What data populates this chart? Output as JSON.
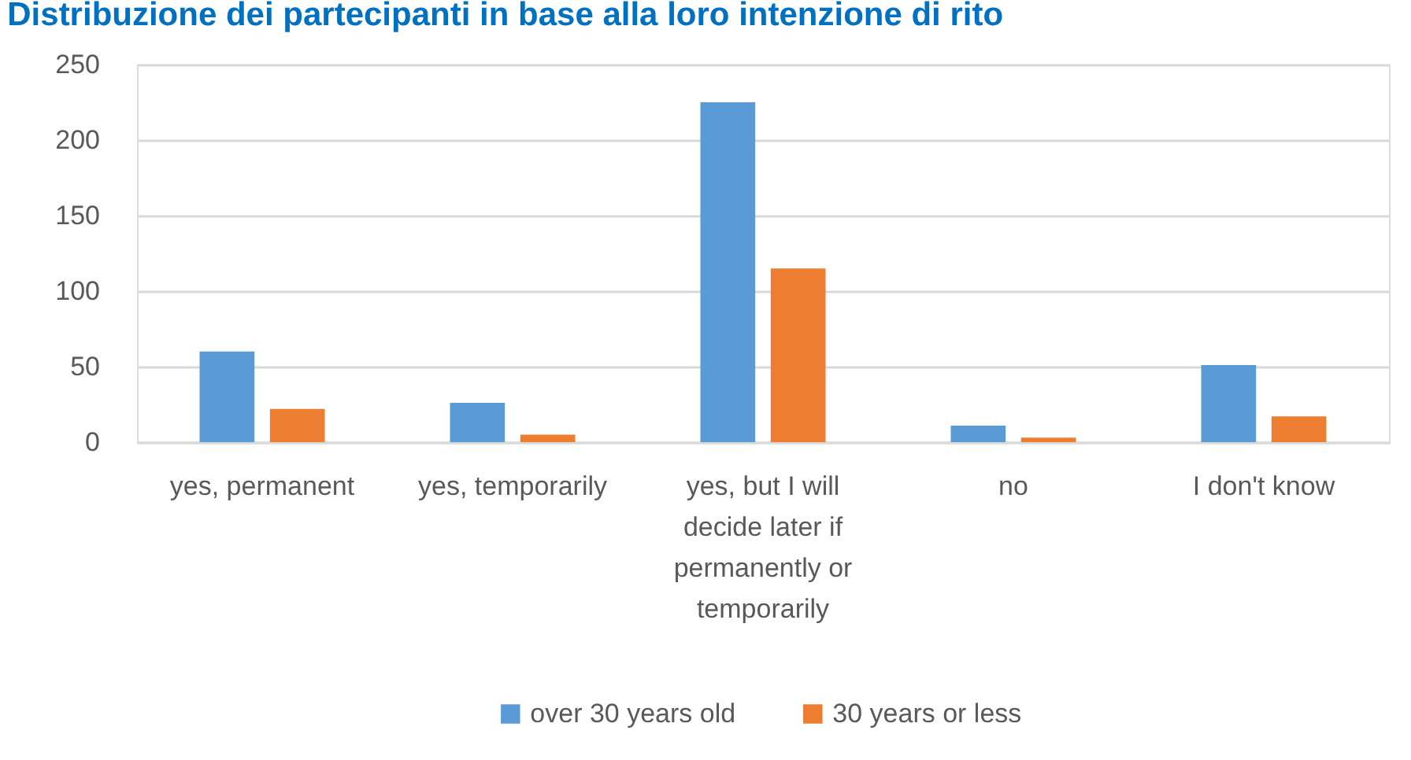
{
  "chart_data": {
    "type": "bar",
    "title": "Distribuzione dei partecipanti in base alla loro intenzione di rito",
    "categories": [
      "yes, permanent",
      "yes, temporarily",
      "yes, but I will decide later if permanently or temporarily",
      "no",
      "I don't know"
    ],
    "series": [
      {
        "name": "over 30 years old",
        "color": "#5b9bd5",
        "values": [
          60,
          26,
          225,
          11,
          51
        ]
      },
      {
        "name": "30 years or less",
        "color": "#ed7d31",
        "values": [
          22,
          5,
          115,
          3,
          17
        ]
      }
    ],
    "ylim": [
      0,
      250
    ],
    "yticks": [
      0,
      50,
      100,
      150,
      200,
      250
    ],
    "grid": "y",
    "legend": "bottom"
  }
}
